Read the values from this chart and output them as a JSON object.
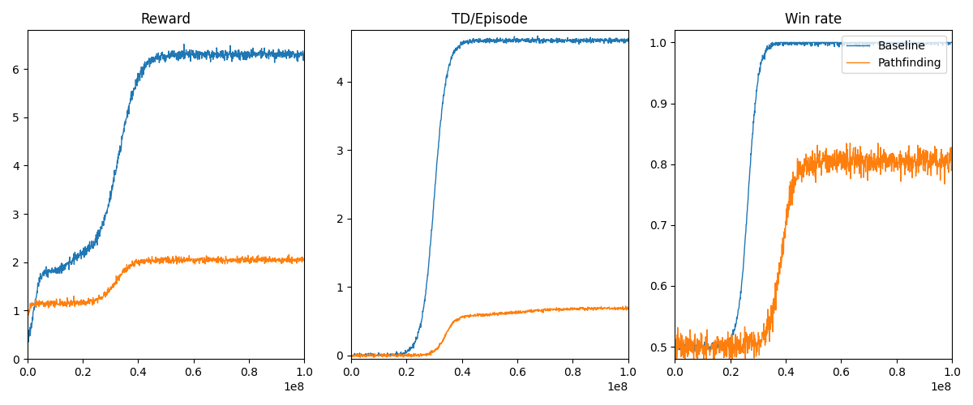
{
  "title1": "Reward",
  "title2": "TD/Episode",
  "title3": "Win rate",
  "legend_labels": [
    "Baseline",
    "Pathfinding"
  ],
  "colors": [
    "#1f77b4",
    "#ff7f0e"
  ],
  "xlim": [
    0,
    100000000.0
  ],
  "reward_ylim": [
    0,
    6.8
  ],
  "td_ylim": [
    -0.05,
    4.75
  ],
  "winrate_ylim": [
    0.48,
    1.02
  ],
  "winrate_yticks": [
    0.5,
    0.6,
    0.7,
    0.8,
    0.9,
    1.0
  ],
  "n_points": 1000
}
